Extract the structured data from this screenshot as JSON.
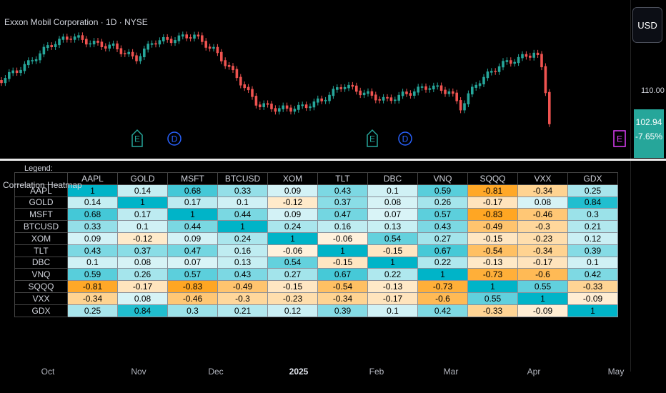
{
  "chart": {
    "title": "Exxon Mobil Corporation · 1D · NYSE",
    "currency": "USD",
    "price_ticks": [
      "110.00"
    ],
    "last_price": "102.94",
    "last_change": "-7.65%",
    "colors": {
      "up": "#26a69a",
      "down": "#ef5350",
      "earnings": "#26a69a",
      "dividend": "#2962ff",
      "earnings_future": "#e040fb"
    },
    "event_markers": [
      {
        "label": "E",
        "kind": "earnings",
        "icon": "earnings-icon"
      },
      {
        "label": "D",
        "kind": "dividend",
        "icon": "dividend-icon"
      },
      {
        "label": "E",
        "kind": "earnings",
        "icon": "earnings-icon"
      },
      {
        "label": "D",
        "kind": "dividend",
        "icon": "dividend-icon"
      },
      {
        "label": "E",
        "kind": "earnings_future",
        "icon": "earnings-icon"
      }
    ]
  },
  "heatmap": {
    "caption": "Correlation Heatmap",
    "legend_label": "Legend:",
    "colors": {
      "positive": "#00b4c8",
      "negative": "#ff9800",
      "neutral": "#ffffff"
    },
    "symbols": [
      "AAPL",
      "GOLD",
      "MSFT",
      "BTCUSD",
      "XOM",
      "TLT",
      "DBC",
      "VNQ",
      "SQQQ",
      "VXX",
      "GDX"
    ],
    "matrix": [
      [
        "1",
        "0.14",
        "0.68",
        "0.33",
        "0.09",
        "0.43",
        "0.1",
        "0.59",
        "-0.81",
        "-0.34",
        "0.25"
      ],
      [
        "0.14",
        "1",
        "0.17",
        "0.1",
        "-0.12",
        "0.37",
        "0.08",
        "0.26",
        "-0.17",
        "0.08",
        "0.84"
      ],
      [
        "0.68",
        "0.17",
        "1",
        "0.44",
        "0.09",
        "0.47",
        "0.07",
        "0.57",
        "-0.83",
        "-0.46",
        "0.3"
      ],
      [
        "0.33",
        "0.1",
        "0.44",
        "1",
        "0.24",
        "0.16",
        "0.13",
        "0.43",
        "-0.49",
        "-0.3",
        "0.21"
      ],
      [
        "0.09",
        "-0.12",
        "0.09",
        "0.24",
        "1",
        "-0.06",
        "0.54",
        "0.27",
        "-0.15",
        "-0.23",
        "0.12"
      ],
      [
        "0.43",
        "0.37",
        "0.47",
        "0.16",
        "-0.06",
        "1",
        "-0.15",
        "0.67",
        "-0.54",
        "-0.34",
        "0.39"
      ],
      [
        "0.1",
        "0.08",
        "0.07",
        "0.13",
        "0.54",
        "-0.15",
        "1",
        "0.22",
        "-0.13",
        "-0.17",
        "0.1"
      ],
      [
        "0.59",
        "0.26",
        "0.57",
        "0.43",
        "0.27",
        "0.67",
        "0.22",
        "1",
        "-0.73",
        "-0.6",
        "0.42"
      ],
      [
        "-0.81",
        "-0.17",
        "-0.83",
        "-0.49",
        "-0.15",
        "-0.54",
        "-0.13",
        "-0.73",
        "1",
        "0.55",
        "-0.33"
      ],
      [
        "-0.34",
        "0.08",
        "-0.46",
        "-0.3",
        "-0.23",
        "-0.34",
        "-0.17",
        "-0.6",
        "0.55",
        "1",
        "-0.09"
      ],
      [
        "0.25",
        "0.84",
        "0.3",
        "0.21",
        "0.12",
        "0.39",
        "0.1",
        "0.42",
        "-0.33",
        "-0.09",
        "1"
      ]
    ]
  },
  "time_axis": [
    {
      "label": "Oct",
      "bold": false
    },
    {
      "label": "Nov",
      "bold": false
    },
    {
      "label": "Dec",
      "bold": false
    },
    {
      "label": "2025",
      "bold": true
    },
    {
      "label": "Feb",
      "bold": false
    },
    {
      "label": "Mar",
      "bold": false
    },
    {
      "label": "Apr",
      "bold": false
    },
    {
      "label": "May",
      "bold": false
    }
  ]
}
